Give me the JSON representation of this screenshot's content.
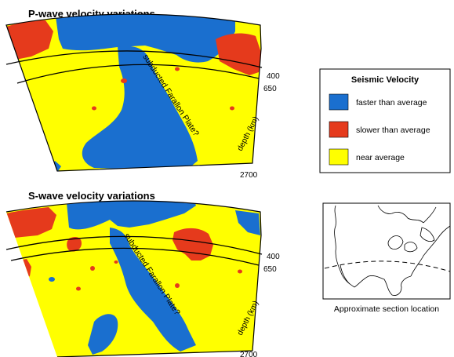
{
  "panels": [
    {
      "title": "P-wave velocity variations",
      "plate_label": "subducted Farallon Plate?",
      "depth_ticks": [
        "400",
        "650",
        "2700"
      ],
      "depth_axis_label": "depth (km)"
    },
    {
      "title": "S-wave velocity variations",
      "plate_label": "subducted Farallon Plate?",
      "depth_ticks": [
        "400",
        "650",
        "2700"
      ],
      "depth_axis_label": "depth (km)"
    }
  ],
  "legend": {
    "title": "Seismic Velocity",
    "items": [
      {
        "label": "faster than average",
        "color": "#1a6fcf"
      },
      {
        "label": "slower than average",
        "color": "#e53a1c"
      },
      {
        "label": "near average",
        "color": "#ffff00"
      }
    ]
  },
  "map": {
    "caption": "Approximate section location"
  }
}
